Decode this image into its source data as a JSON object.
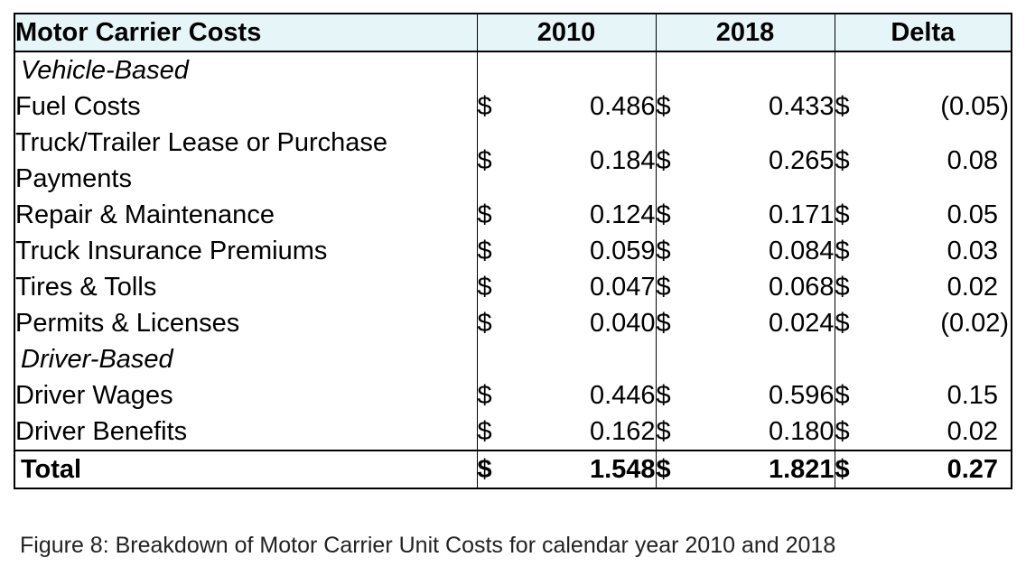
{
  "table": {
    "header": {
      "label": "Motor Carrier Costs",
      "col1": "2010",
      "col2": "2018",
      "col3": "Delta"
    },
    "currency": "$",
    "groups": {
      "vehicle": "Vehicle-Based",
      "driver": "Driver-Based"
    },
    "rows": {
      "fuel": {
        "label": "Fuel Costs",
        "v2010": "0.486",
        "v2018": "0.433",
        "delta": "(0.05)"
      },
      "truck": {
        "label": "Truck/Trailer Lease or Purchase Payments",
        "v2010": "0.184",
        "v2018": "0.265",
        "delta": "0.08"
      },
      "repair": {
        "label": "Repair & Maintenance",
        "v2010": "0.124",
        "v2018": "0.171",
        "delta": "0.05"
      },
      "insurance": {
        "label": "Truck Insurance Premiums",
        "v2010": "0.059",
        "v2018": "0.084",
        "delta": "0.03"
      },
      "tires": {
        "label": "Tires & Tolls",
        "v2010": "0.047",
        "v2018": "0.068",
        "delta": "0.02"
      },
      "permits": {
        "label": "Permits & Licenses",
        "v2010": "0.040",
        "v2018": "0.024",
        "delta": "(0.02)"
      },
      "wages": {
        "label": "Driver Wages",
        "v2010": "0.446",
        "v2018": "0.596",
        "delta": "0.15"
      },
      "benefits": {
        "label": "Driver Benefits",
        "v2010": "0.162",
        "v2018": "0.180",
        "delta": "0.02"
      }
    },
    "total": {
      "label": "Total",
      "v2010": "1.548",
      "v2018": "1.821",
      "delta": "0.27"
    }
  },
  "caption": "Figure 8: Breakdown of Motor Carrier Unit Costs for calendar year 2010 and 2018"
}
